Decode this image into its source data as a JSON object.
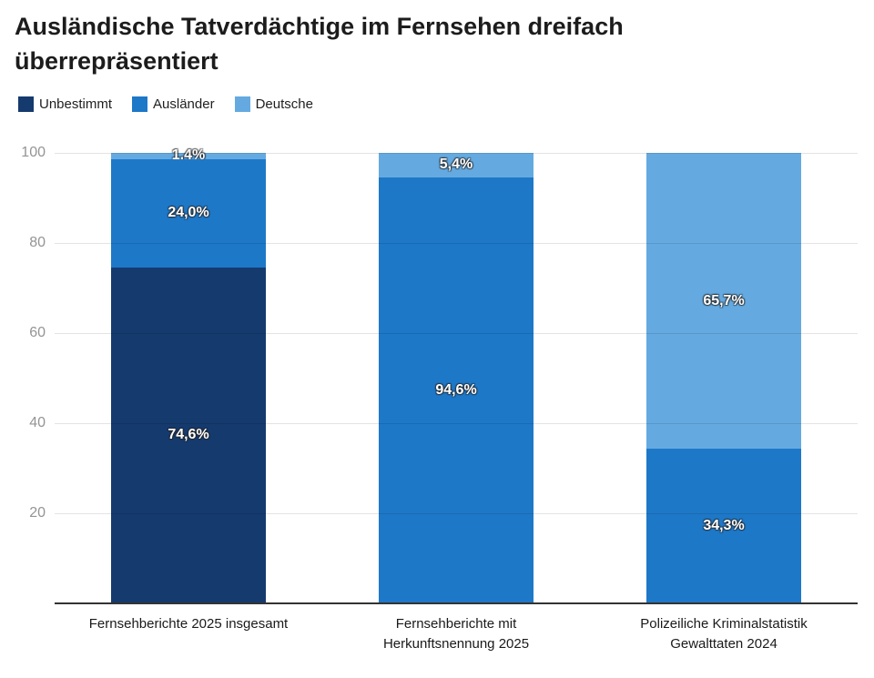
{
  "title": "Ausländische Tatverdächtige im Fernsehen dreifach überrepräsentiert",
  "legend": [
    {
      "label": "Unbestimmt",
      "color": "#153a6e"
    },
    {
      "label": "Ausländer",
      "color": "#1e78c8"
    },
    {
      "label": "Deutsche",
      "color": "#64aae1"
    }
  ],
  "colors": {
    "unbestimmt": "#153a6e",
    "auslaender": "#1e78c8",
    "deutsche": "#64aae1",
    "gridline": "#e6e6e6",
    "axis_line": "#333333",
    "tick_label": "#949494",
    "title_text": "#1c1c1c",
    "category_label": "#1a1a1a",
    "annotation_text": "#ffffff"
  },
  "chart_data": {
    "type": "bar",
    "stacked": true,
    "unit": "%",
    "title": "Ausländische Tatverdächtige im Fernsehen dreifach überrepräsentiert",
    "categories": [
      "Fernsehberichte 2025 insgesamt",
      "Fernsehberichte mit\nHerkunftsnennung 2025",
      "Polizeiliche Kriminalstatistik\nGewalttaten 2024"
    ],
    "series": [
      {
        "name": "Unbestimmt",
        "color": "#153a6e",
        "values": [
          74.6,
          0.0,
          0.0
        ],
        "labels": [
          "74,6%",
          "",
          ""
        ]
      },
      {
        "name": "Ausländer",
        "color": "#1e78c8",
        "values": [
          24.0,
          94.6,
          34.3
        ],
        "labels": [
          "24,0%",
          "94,6%",
          "34,3%"
        ]
      },
      {
        "name": "Deutsche",
        "color": "#64aae1",
        "values": [
          1.4,
          5.4,
          65.7
        ],
        "labels": [
          "1,4%",
          "5,4%",
          "65,7%"
        ]
      }
    ],
    "y_ticks": [
      20,
      40,
      60,
      80,
      100
    ],
    "ylim": [
      0,
      100
    ],
    "xlabel": "",
    "ylabel": "",
    "grid": true,
    "legend_position": "top"
  }
}
